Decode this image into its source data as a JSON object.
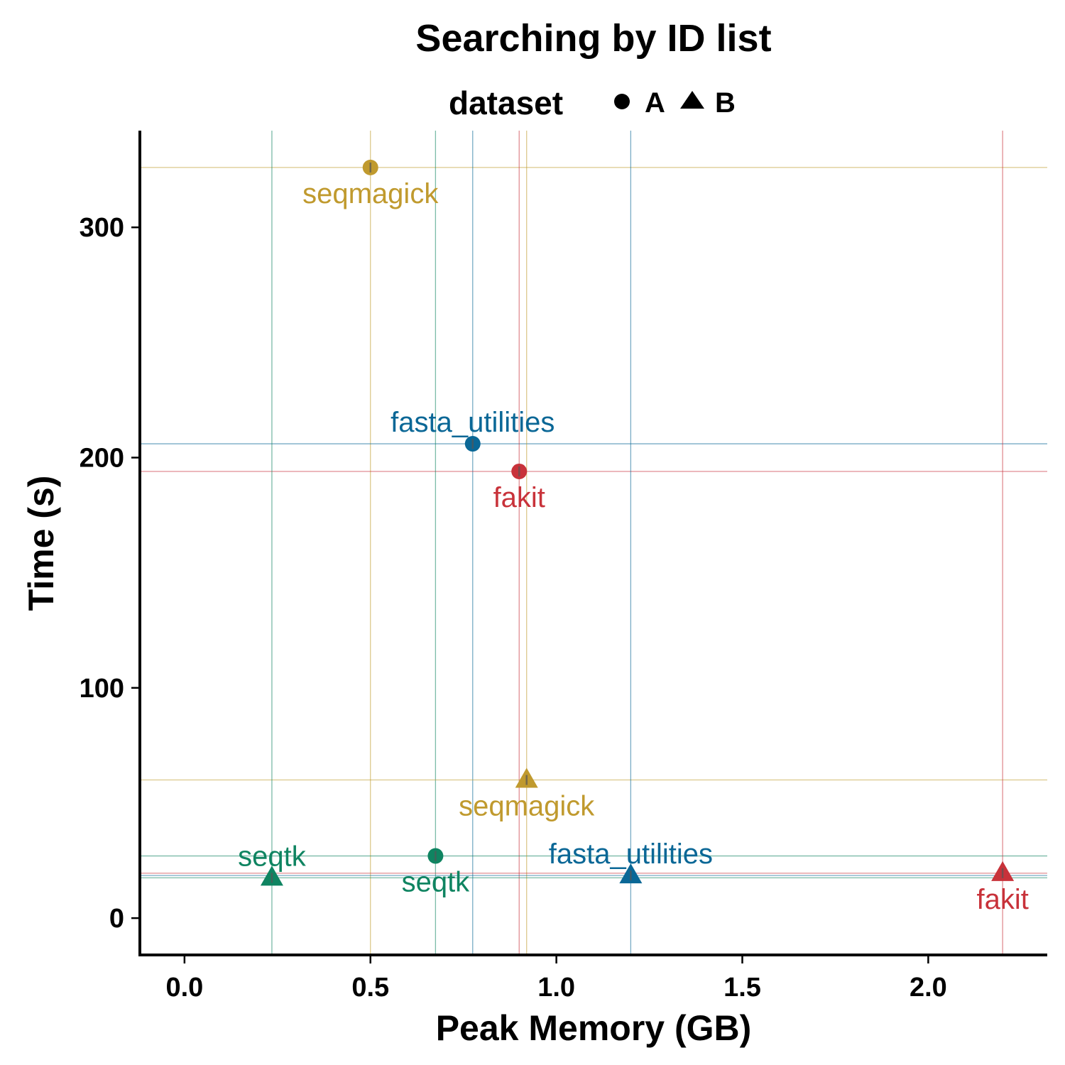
{
  "chart_data": {
    "type": "scatter",
    "title": "Searching by ID list",
    "xlabel": "Peak Memory (GB)",
    "ylabel": "Time (s)",
    "xlim": [
      -0.12,
      2.32
    ],
    "ylim": [
      -16,
      342
    ],
    "x_ticks": [
      {
        "value": 0,
        "label": "0.0"
      },
      {
        "value": 0.5,
        "label": "0.5"
      },
      {
        "value": 1.0,
        "label": "1.0"
      },
      {
        "value": 1.5,
        "label": "1.5"
      },
      {
        "value": 2.0,
        "label": "2.0"
      }
    ],
    "y_ticks": [
      {
        "value": 0,
        "label": "0"
      },
      {
        "value": 100,
        "label": "100"
      },
      {
        "value": 200,
        "label": "200"
      },
      {
        "value": 300,
        "label": "300"
      }
    ],
    "grid": false,
    "reference_lines": true,
    "legend": {
      "title": "dataset",
      "placement": "top",
      "entries": [
        {
          "label": "A",
          "shape": "circle"
        },
        {
          "label": "B",
          "shape": "triangle"
        }
      ]
    },
    "colors": {
      "seqmagick": "#C09A2E",
      "fasta_utilities": "#0A6796",
      "fakit": "#C8323A",
      "seqtk": "#0F8461"
    },
    "points": [
      {
        "tool": "seqmagick",
        "dataset": "A",
        "x": 0.5,
        "y": 326,
        "label_pos": "below"
      },
      {
        "tool": "fasta_utilities",
        "dataset": "A",
        "x": 0.775,
        "y": 206,
        "label_pos": "above"
      },
      {
        "tool": "fakit",
        "dataset": "A",
        "x": 0.9,
        "y": 194,
        "label_pos": "below"
      },
      {
        "tool": "seqtk",
        "dataset": "A",
        "x": 0.675,
        "y": 27,
        "label_pos": "below"
      },
      {
        "tool": "seqmagick",
        "dataset": "B",
        "x": 0.92,
        "y": 60,
        "label_pos": "below"
      },
      {
        "tool": "fasta_utilities",
        "dataset": "B",
        "x": 1.2,
        "y": 18.5,
        "label_pos": "above"
      },
      {
        "tool": "fakit",
        "dataset": "B",
        "x": 2.2,
        "y": 19.5,
        "label_pos": "below"
      },
      {
        "tool": "seqtk",
        "dataset": "B",
        "x": 0.235,
        "y": 17.5,
        "label_pos": "above"
      }
    ]
  }
}
